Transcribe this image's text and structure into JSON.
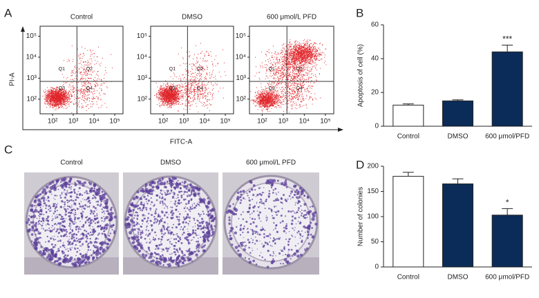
{
  "chart_data": [
    {
      "type": "flow",
      "panel_label": "A",
      "titles": [
        "Control",
        "DMSO",
        "600 μmol/L PFD"
      ],
      "xlabel": "FITC-A",
      "ylabel": "PI-A",
      "log": true,
      "xlim": [
        25,
        250000
      ],
      "ylim": [
        20,
        300000
      ],
      "xticks": [
        {
          "value": 100,
          "label": "10²"
        },
        {
          "value": 1000,
          "label": "10³"
        },
        {
          "value": 10000,
          "label": "10⁴"
        },
        {
          "value": 100000,
          "label": "10⁵"
        }
      ],
      "yticks": [
        {
          "value": 100,
          "label": "10²"
        },
        {
          "value": 1000,
          "label": "10³"
        },
        {
          "value": 10000,
          "label": "10⁴"
        },
        {
          "value": 100000,
          "label": "10⁵"
        }
      ],
      "gate": [
        1500,
        700
      ],
      "quadrants": [
        "Q1",
        "Q2",
        "Q3",
        "Q4"
      ],
      "color": "#e0262b"
    },
    {
      "type": "bar",
      "panel_label": "B",
      "ylabel": "Apoptosis of cell (%)",
      "categories": [
        "Control",
        "DMSO",
        "600 μmol/PFD"
      ],
      "values": [
        12.5,
        15,
        44
      ],
      "errors": [
        0.7,
        0.6,
        4
      ],
      "colors": [
        "#ffffff",
        "#0b2c58",
        "#0b2c58"
      ],
      "significance": [
        null,
        null,
        "***"
      ],
      "ylim": [
        0,
        60
      ],
      "yticks": [
        0,
        20,
        40,
        60
      ]
    },
    {
      "type": "photo",
      "panel_label": "C",
      "titles": [
        "Control",
        "DMSO",
        "600 μmol/L PFD"
      ]
    },
    {
      "type": "bar",
      "panel_label": "D",
      "ylabel": "Number of colonies",
      "categories": [
        "Control",
        "DMSO",
        "600 μmol/PFD"
      ],
      "values": [
        180,
        165,
        103
      ],
      "errors": [
        8,
        10,
        13
      ],
      "colors": [
        "#ffffff",
        "#0b2c58",
        "#0b2c58"
      ],
      "significance": [
        null,
        null,
        "*"
      ],
      "ylim": [
        0,
        200
      ],
      "yticks": [
        0,
        50,
        100,
        150,
        200
      ]
    }
  ]
}
